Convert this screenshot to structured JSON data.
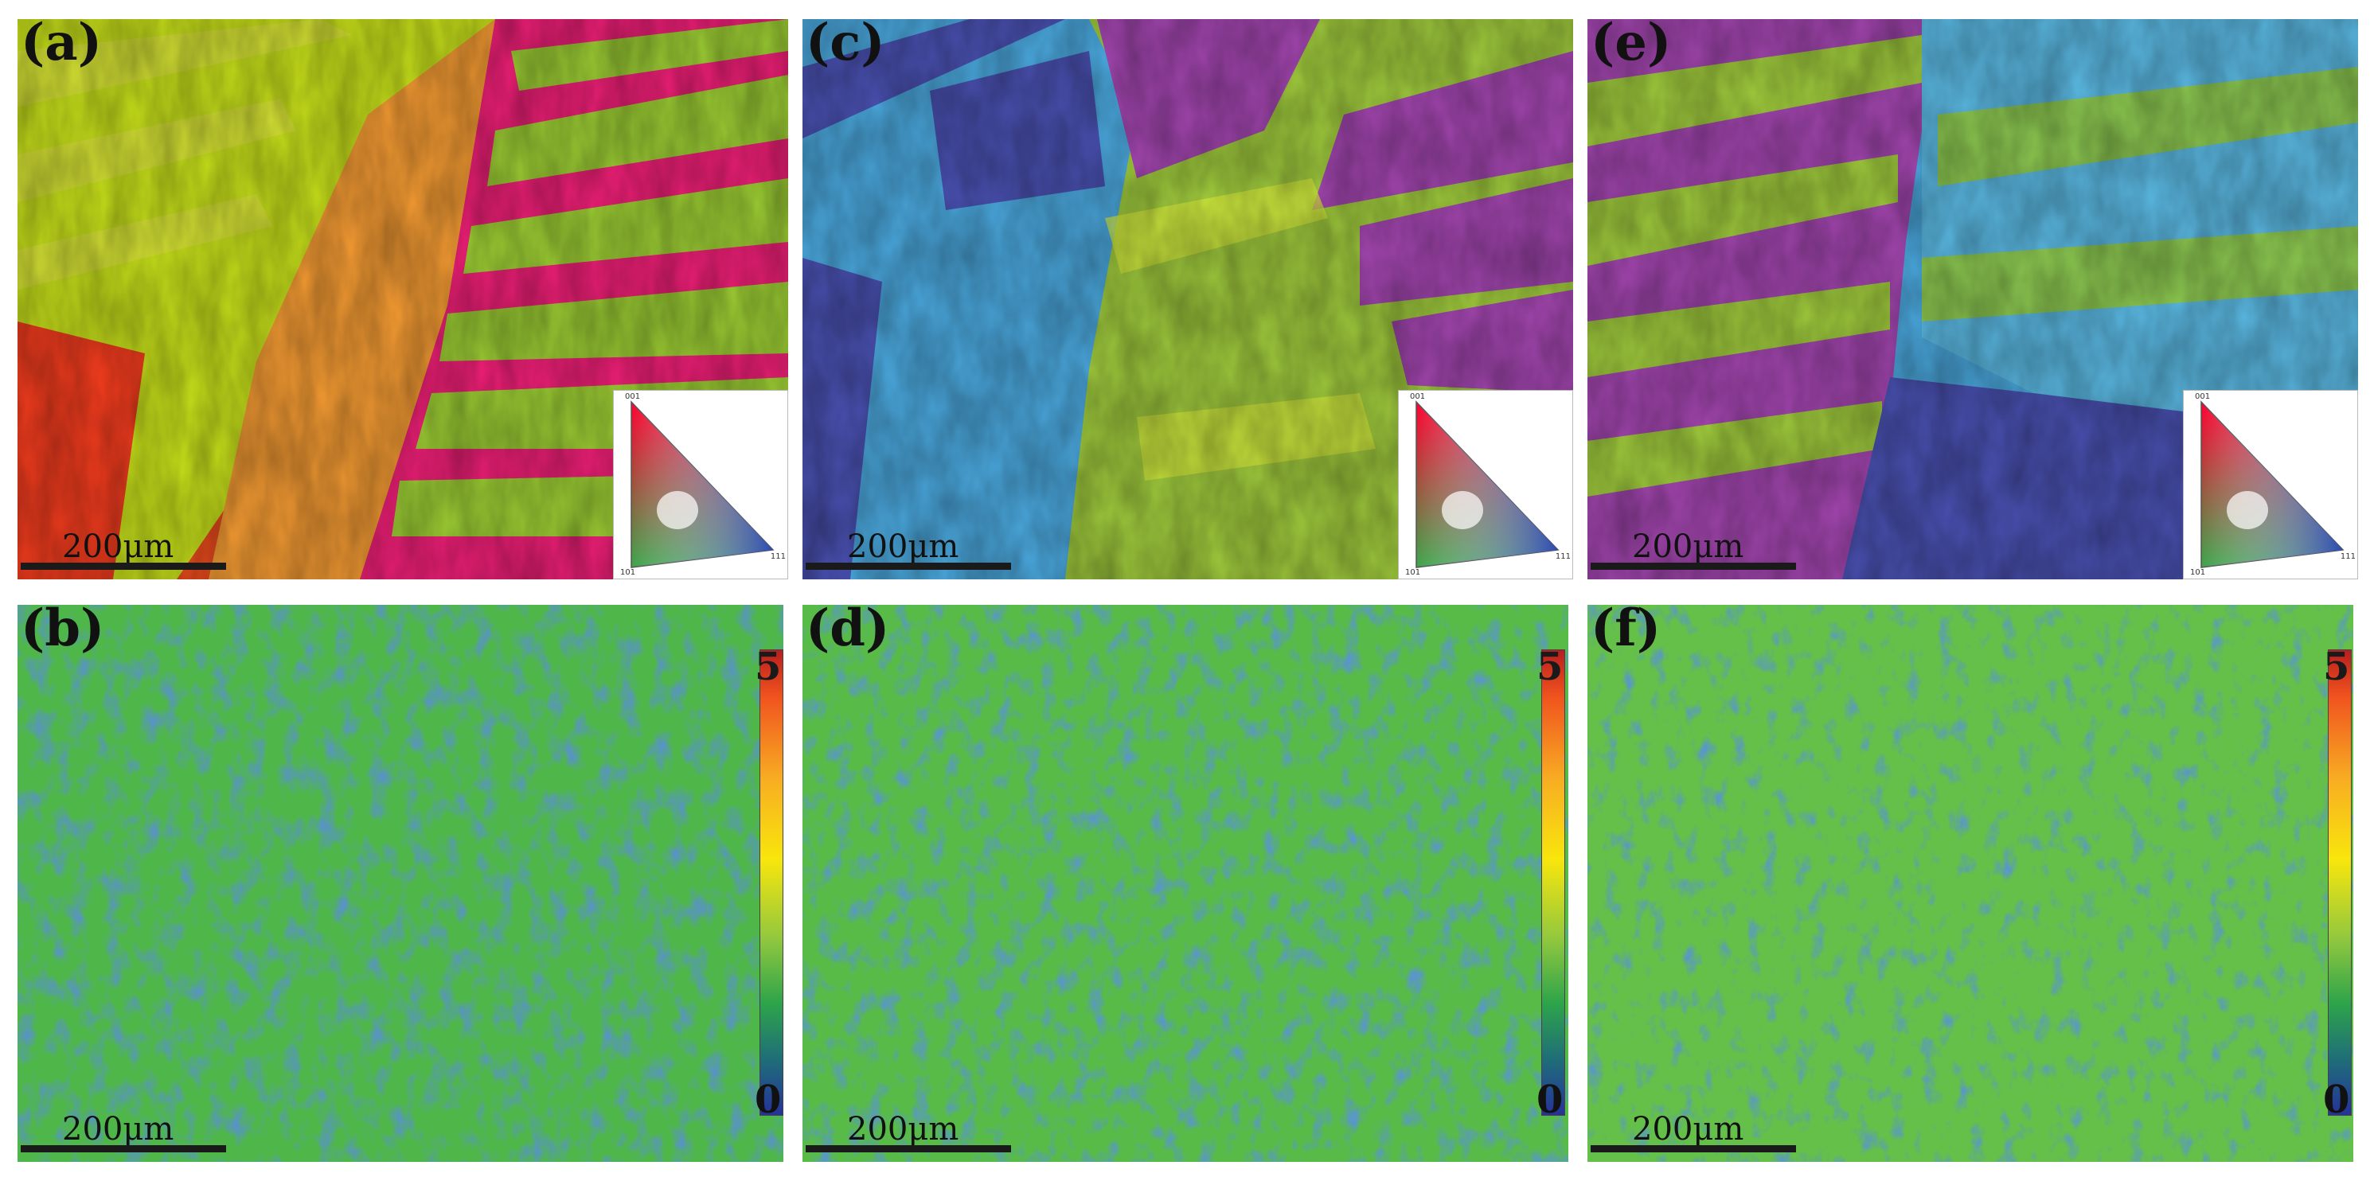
{
  "panels": [
    {
      "id": "a",
      "label": "(a)",
      "kind": "ipf-map",
      "scale_text": "200μm",
      "ipf_key": {
        "t001": "001",
        "t101": "101",
        "t111": "111"
      }
    },
    {
      "id": "c",
      "label": "(c)",
      "kind": "ipf-map",
      "scale_text": "200μm",
      "ipf_key": {
        "t001": "001",
        "t101": "101",
        "t111": "111"
      }
    },
    {
      "id": "e",
      "label": "(e)",
      "kind": "ipf-map",
      "scale_text": "200μm",
      "ipf_key": {
        "t001": "001",
        "t101": "101",
        "t111": "111"
      }
    },
    {
      "id": "b",
      "label": "(b)",
      "kind": "kam-map",
      "scale_text": "200μm",
      "colorbar": {
        "max": "5",
        "min": "0"
      }
    },
    {
      "id": "d",
      "label": "(d)",
      "kind": "kam-map",
      "scale_text": "200μm",
      "colorbar": {
        "max": "5",
        "min": "0"
      }
    },
    {
      "id": "f",
      "label": "(f)",
      "kind": "kam-map",
      "scale_text": "200μm",
      "colorbar": {
        "max": "5",
        "min": "0"
      }
    }
  ]
}
